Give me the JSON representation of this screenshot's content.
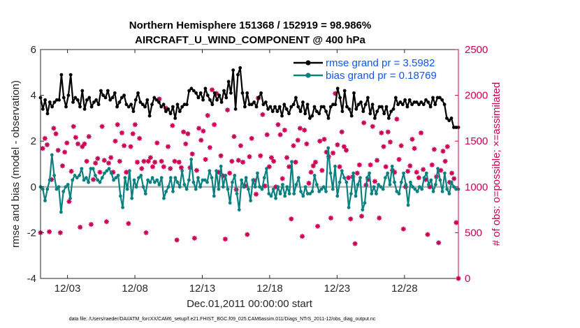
{
  "chart_data": {
    "type": "line",
    "title_line1": "Northern Hemisphere 151368 / 152919 = 98.986%",
    "title_line2": "AIRCRAFT_U_WIND_COMPONENT @ 400 hPa",
    "xlabel": "Dec.01,2011 00:00:00 start",
    "ylabel_left": "rmse and bias (model - observation)",
    "ylabel_right": "# of obs: o=possible; ×=assimilated",
    "footnote": "data file: /Users/raeder/DAI/ATM_forcXX/CAM6_setup/f.e21.FHIST_BGC.f09_025.CAM6assim.011/Diags_NTrS_2011-12/obs_diag_output.nc",
    "x_ticks": [
      "12/03",
      "12/08",
      "12/13",
      "12/18",
      "12/23",
      "12/28"
    ],
    "x_tick_days": [
      3,
      8,
      13,
      18,
      23,
      28
    ],
    "xlim": [
      1,
      32
    ],
    "y_left_ticks": [
      "-4",
      "-2",
      "0",
      "2",
      "4",
      "6"
    ],
    "ylim_left": [
      -4,
      6
    ],
    "y_right_ticks": [
      "0",
      "500",
      "1000",
      "1500",
      "2000",
      "2500"
    ],
    "ylim_right": [
      0,
      2500
    ],
    "colors": {
      "rmse": "#000000",
      "bias": "#0a8080",
      "obs": "#cc0055",
      "zero": "#b3b3b3"
    },
    "legend": {
      "rmse": "rmse grand pr = 3.5982",
      "bias": "bias grand pr = 0.18769"
    },
    "series": [
      {
        "name": "rmse",
        "values": [
          3.9,
          3.4,
          3.8,
          3.2,
          3.7,
          3.5,
          3.7,
          3.8,
          3.8,
          4.9,
          3.9,
          3.5,
          4.0,
          4.9,
          3.7,
          3.9,
          3.8,
          3.5,
          4.2,
          3.4,
          3.8,
          3.9,
          3.5,
          3.7,
          3.8,
          3.6,
          4.2,
          4.0,
          3.9,
          4.2,
          3.8,
          3.9,
          4.1,
          3.5,
          3.7,
          3.9,
          4.0,
          3.6,
          3.5,
          3.6,
          3.3,
          3.8,
          4.1,
          3.7,
          3.6,
          3.5,
          3.8,
          3.1,
          3.6,
          3.9,
          3.8,
          3.7,
          3.5,
          3.6,
          3.3,
          3.4,
          3.2,
          3.5,
          3.0,
          3.6,
          3.3,
          3.5,
          3.6,
          3.6,
          4.2,
          4.3,
          4.2,
          4.1,
          3.9,
          4.1,
          3.8,
          4.3,
          4.0,
          3.8,
          3.6,
          4.1,
          3.8,
          4.0,
          3.7,
          4.2,
          3.9,
          4.6,
          4.1,
          5.1,
          3.4,
          4.9,
          5.2,
          4.1,
          3.5,
          4.1,
          3.6,
          3.6,
          3.7,
          3.5,
          3.9,
          4.1,
          3.6,
          3.7,
          3.4,
          3.5,
          3.3,
          3.5,
          3.3,
          3.5,
          3.1,
          3.6,
          3.4,
          3.2,
          3.5,
          3.6,
          3.9,
          3.5,
          3.3,
          3.7,
          3.2,
          3.6,
          3.0,
          3.1,
          3.5,
          3.3,
          3.2,
          3.5,
          3.5,
          3.3,
          3.0,
          3.5,
          3.6,
          3.6,
          4.3,
          3.9,
          3.3,
          4.2,
          3.5,
          3.4,
          3.1,
          4.1,
          3.4,
          3.6,
          3.7,
          3.3,
          3.6,
          3.9,
          3.2,
          3.6,
          3.0,
          3.3,
          3.5,
          3.5,
          3.2,
          3.5,
          3.0,
          3.3,
          3.4,
          3.9,
          3.6,
          3.7,
          3.6,
          3.8,
          3.5,
          3.8,
          3.6,
          3.7,
          3.7,
          3.6,
          3.7,
          3.6,
          3.8,
          3.7,
          3.5,
          3.9,
          3.6,
          3.9,
          3.9,
          3.8,
          3.6,
          3.0,
          2.9,
          3.0,
          2.6,
          2.6,
          2.6
        ]
      },
      {
        "name": "bias",
        "values": [
          0.0,
          -0.1,
          -0.6,
          -0.1,
          0.3,
          1.4,
          0.5,
          -0.1,
          0.0,
          -1.1,
          -0.2,
          0.0,
          0.1,
          -0.5,
          0.3,
          0.5,
          0.4,
          0.5,
          0.8,
          0.3,
          0.4,
          0.2,
          0.8,
          0.8,
          0.5,
          0.3,
          0.2,
          0.4,
          0.6,
          0.7,
          0.8,
          0.6,
          0.3,
          0.4,
          0.5,
          -0.4,
          -0.9,
          0.4,
          -0.1,
          0.7,
          -0.5,
          0.3,
          0.0,
          0.4,
          0.5,
          0.0,
          -0.3,
          0.3,
          0.2,
          0.4,
          0.2,
          0.3,
          0.1,
          0.4,
          -0.5,
          -0.2,
          0.0,
          0.4,
          -0.2,
          0.4,
          0.2,
          0.0,
          0.7,
          0.1,
          -0.1,
          0.3,
          1.2,
          0.2,
          -0.1,
          0.4,
          0.0,
          0.3,
          0.3,
          0.2,
          0.7,
          0.4,
          -0.4,
          0.7,
          -0.1,
          0.9,
          0.0,
          0.5,
          -0.1,
          -0.7,
          0.2,
          0.5,
          -0.3,
          -1.0,
          0.3,
          0.0,
          0.4,
          -0.1,
          -0.6,
          0.3,
          0.0,
          0.6,
          0.0,
          -0.1,
          0.4,
          0.8,
          -0.3,
          -0.4,
          -0.1,
          -0.5,
          0.0,
          -0.3,
          0.1,
          -0.4,
          0.0,
          -0.3,
          1.1,
          -0.3,
          0.1,
          0.4,
          -0.2,
          -0.4,
          0.0,
          -0.3,
          -0.3,
          -0.2,
          0.5,
          0.1,
          -0.2,
          -0.1,
          0.0,
          -0.2,
          1.7,
          0.6,
          -0.1,
          0.9,
          -0.4,
          0.2,
          0.7,
          0.4,
          0.2,
          -0.9,
          -0.3,
          0.6,
          -0.4,
          0.1,
          0.4,
          -1.0,
          -0.7,
          0.4,
          0.6,
          -0.3,
          0.0,
          -0.3,
          0.1,
          0.0,
          -0.1,
          0.4,
          0.6,
          0.1,
          0.9,
          0.2,
          -0.2,
          -0.3,
          0.2,
          0.6,
          0.1,
          -0.8,
          0.2,
          0.0,
          -0.1,
          -0.2,
          0.0,
          -0.1,
          0.4,
          0.6,
          0.1,
          0.3,
          -0.2,
          0.1,
          0.8,
          0.3,
          -0.2,
          0.6,
          -0.1,
          -0.3,
          0.2,
          0.0,
          -0.1,
          -0.1
        ]
      },
      {
        "name": "obs_count",
        "values": [
          500,
          1420,
          1530,
          1460,
          510,
          1080,
          1640,
          1580,
          1400,
          500,
          1230,
          1380,
          1480,
          840,
          1170,
          1660,
          1540,
          1470,
          560,
          1440,
          1470,
          1280,
          1550,
          590,
          1080,
          1260,
          1310,
          1160,
          1660,
          1290,
          620,
          1260,
          1320,
          1160,
          1500,
          1680,
          1280,
          1590,
          1450,
          1160,
          600,
          1440,
          1580,
          1680,
          1270,
          1530,
          1200,
          1280,
          500,
          1280,
          1320,
          1220,
          1270,
          1480,
          1960,
          1280,
          1220,
          1860,
          1440,
          1200,
          1670,
          1280,
          420,
          1270,
          1210,
          1600,
          1470,
          1580,
          1210,
          1360,
          440,
          1180,
          1640,
          1510,
          1610,
          1300,
          1780,
          1430,
          2060,
          1680,
          2020,
          1160,
          1340,
          1120,
          430,
          1840,
          1150,
          1280,
          1550,
          970,
          1290,
          1450,
          1270,
          1010,
          480,
          1330,
          1530,
          1070,
          920,
          1970,
          1340,
          1790,
          1010,
          1570,
          1220,
          1320,
          1280,
          1000,
          1680,
          1570,
          1090,
          1620,
          1320,
          1220,
          650,
          1450,
          1270,
          1510,
          1640,
          460,
          1620,
          1470,
          1040,
          1160,
          1230,
          1270,
          570,
          1500,
          1180,
          1520,
          1380,
          1330,
          660,
          1370,
          2020,
          1460,
          1220,
          1600,
          1440,
          1400,
          1100,
          650,
          1110,
          380,
          1150,
          1240,
          680,
          1700,
          1020,
          1080,
          1240,
          1660,
          1060,
          1290,
          660,
          1590,
          1440,
          1220,
          1600,
          1490,
          1180,
          1160,
          1740,
          1300,
          1450,
          540,
          1000,
          1170,
          1230,
          1520,
          1420,
          1160,
          1100,
          1590,
          1190,
          1080,
          480,
          1000,
          1240,
          1410,
          1110,
          390,
          1180,
          1390,
          1280,
          1440,
          1050,
          1150,
          1090,
          610,
          0
        ]
      }
    ]
  }
}
